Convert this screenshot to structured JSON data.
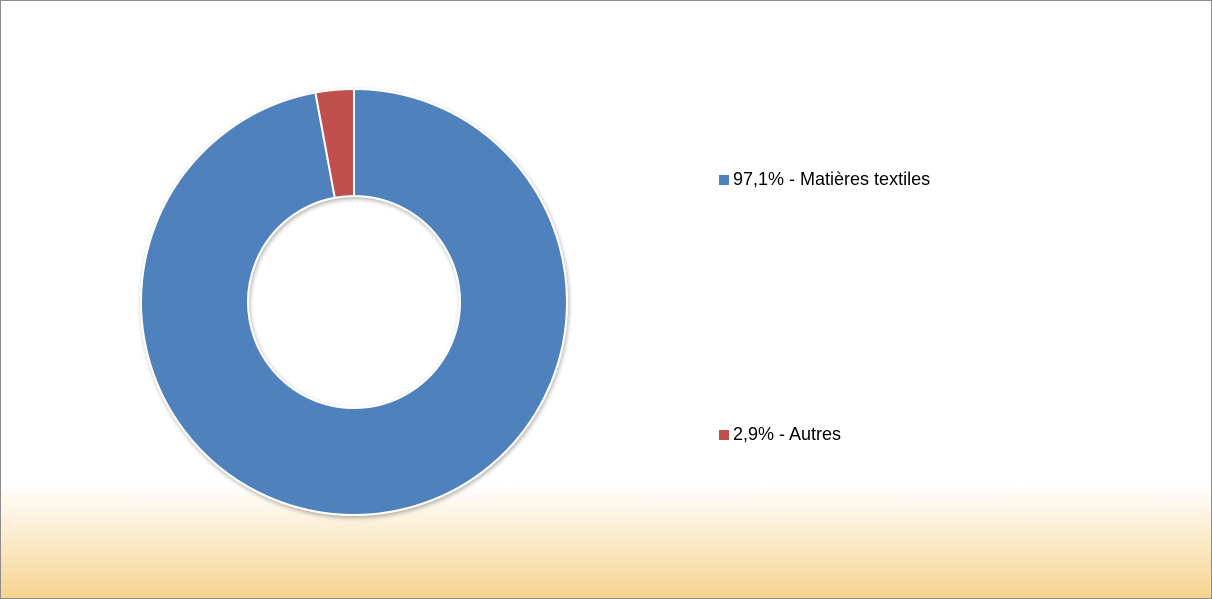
{
  "chart_data": {
    "type": "donut",
    "categories": [
      "97,1% - Matières textiles",
      "2,9% - Autres"
    ],
    "values": [
      97.1,
      2.9
    ],
    "colors": [
      "#4f81bd",
      "#c0504d"
    ],
    "legend": "right"
  }
}
